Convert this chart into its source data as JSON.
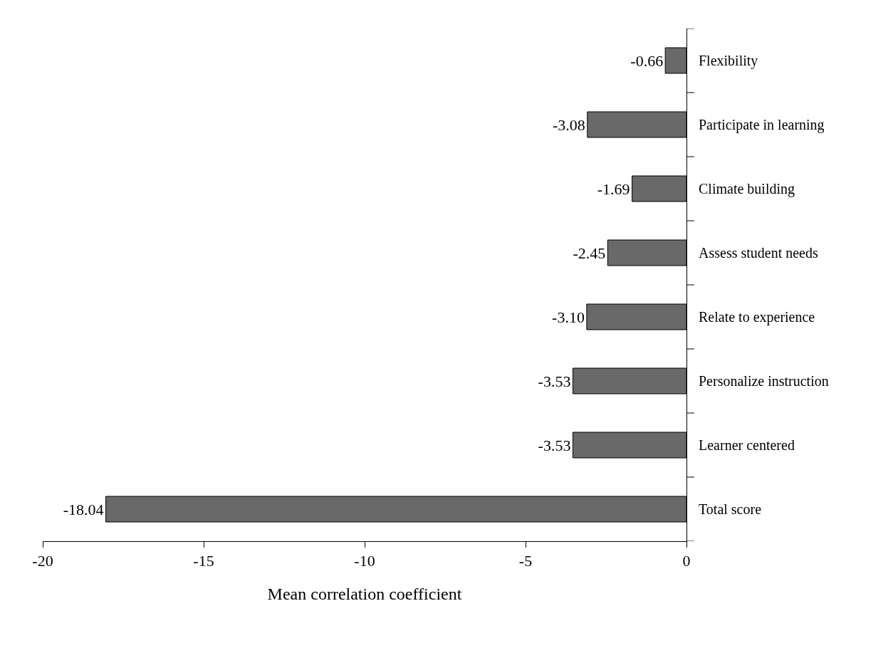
{
  "chart_data": {
    "type": "bar",
    "orientation": "horizontal",
    "xlabel": "Mean correlation coefficient",
    "categories": [
      "Flexibility",
      "Participate in learning",
      "Climate building",
      "Assess student needs",
      "Relate to experience",
      "Personalize instruction",
      "Learner centered",
      "Total score"
    ],
    "values": [
      -0.66,
      -3.08,
      -1.69,
      -2.45,
      -3.1,
      -3.53,
      -3.53,
      -18.04
    ],
    "value_labels": [
      "-0.66",
      "-3.08",
      "-1.69",
      "-2.45",
      "-3.10",
      "-3.53",
      "-3.53",
      "-18.04"
    ],
    "color": "#696969",
    "xlim": [
      -20,
      0
    ],
    "xticks": [
      -20,
      -15,
      -10,
      -5,
      0
    ]
  }
}
